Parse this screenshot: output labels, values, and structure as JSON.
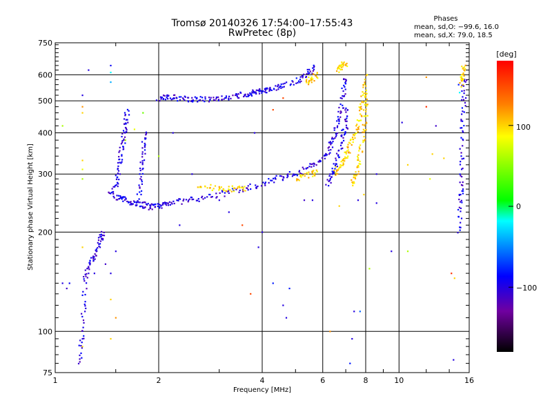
{
  "header": {
    "title": "Tromsø 20140326 17:54:00–17:55:43",
    "subtitle": "RwPretec (8p)"
  },
  "phase_info": {
    "heading": "Phases",
    "line_o": "mean, sd,O: −99.6, 16.0",
    "line_x": "mean, sd,X:  79.0, 18.5"
  },
  "chart_data": {
    "type": "scatter",
    "title": "Tromsø 20140326 17:54:00–17:55:43",
    "subtitle": "RwPretec (8p)",
    "xlabel": "Frequency [MHz]",
    "ylabel": "Stationary phase Virtual Height [km]",
    "xscale": "log",
    "yscale": "log",
    "xlim": [
      1,
      16
    ],
    "ylim": [
      75,
      750
    ],
    "grid": true,
    "x_ticks": [
      1,
      2,
      4,
      6,
      8,
      10,
      16
    ],
    "y_ticks": [
      75,
      100,
      200,
      300,
      400,
      500,
      600,
      750
    ],
    "colorbar": {
      "label": "[deg]",
      "range": [
        -180,
        180
      ],
      "ticks": [
        -100,
        0,
        100
      ],
      "colors": [
        "#000000",
        "#7000a0",
        "#0000ff",
        "#00ffff",
        "#00ff00",
        "#ffff00",
        "#ff8000",
        "#ff0000"
      ]
    },
    "series": [
      {
        "traces": [
          {
            "points": [
              [
                1.5,
                270
              ],
              [
                1.52,
                300
              ],
              [
                1.55,
                340
              ],
              [
                1.58,
                380
              ],
              [
                1.6,
                420
              ],
              [
                1.62,
                470
              ]
            ],
            "phase": -100
          },
          {
            "points": [
              [
                1.45,
                268
              ],
              [
                1.52,
                255
              ],
              [
                1.6,
                250
              ],
              [
                1.7,
                245
              ],
              [
                1.8,
                242
              ],
              [
                1.9,
                238
              ],
              [
                2.0,
                240
              ],
              [
                2.1,
                245
              ],
              [
                2.3,
                248
              ],
              [
                2.6,
                252
              ],
              [
                3.0,
                260
              ],
              [
                3.5,
                270
              ],
              [
                4.0,
                280
              ],
              [
                4.5,
                292
              ],
              [
                5.0,
                302
              ],
              [
                5.5,
                315
              ],
              [
                6.0,
                335
              ],
              [
                6.3,
                360
              ],
              [
                6.5,
                400
              ],
              [
                6.7,
                450
              ],
              [
                6.9,
                520
              ],
              [
                7.0,
                600
              ]
            ],
            "phase": -100
          },
          {
            "points": [
              [
                1.75,
                250
              ],
              [
                1.78,
                300
              ],
              [
                1.8,
                350
              ],
              [
                1.83,
                400
              ]
            ],
            "phase": -100
          },
          {
            "points": [
              [
                2.0,
                510
              ],
              [
                2.1,
                515
              ],
              [
                2.3,
                510
              ],
              [
                2.5,
                505
              ],
              [
                2.7,
                505
              ],
              [
                3.0,
                510
              ],
              [
                3.3,
                515
              ],
              [
                3.6,
                525
              ],
              [
                3.8,
                530
              ],
              [
                4.0,
                535
              ],
              [
                4.2,
                540
              ],
              [
                4.5,
                555
              ],
              [
                5.0,
                575
              ],
              [
                5.4,
                600
              ],
              [
                5.7,
                640
              ]
            ],
            "phase": -100
          },
          {
            "points": [
              [
                1.18,
                80
              ],
              [
                1.2,
                100
              ],
              [
                1.22,
                140
              ],
              [
                1.25,
                160
              ],
              [
                1.3,
                170
              ],
              [
                1.35,
                190
              ],
              [
                1.38,
                200
              ]
            ],
            "phase": -100
          },
          {
            "points": [
              [
                15.0,
                200
              ],
              [
                15.1,
                250
              ],
              [
                15.2,
                300
              ],
              [
                15.3,
                400
              ],
              [
                15.4,
                500
              ],
              [
                15.5,
                600
              ]
            ],
            "phase": -100
          },
          {
            "points": [
              [
                6.2,
                280
              ],
              [
                6.4,
                300
              ],
              [
                6.6,
                330
              ],
              [
                6.8,
                380
              ],
              [
                7.0,
                420
              ],
              [
                7.1,
                480
              ]
            ],
            "phase": -100
          }
        ],
        "name": ""
      },
      {
        "traces": [
          {
            "points": [
              [
                2.6,
                275
              ],
              [
                3.0,
                272
              ],
              [
                3.3,
                270
              ],
              [
                3.6,
                272
              ]
            ],
            "phase": 100
          },
          {
            "points": [
              [
                5.0,
                290
              ],
              [
                5.5,
                300
              ],
              [
                5.8,
                305
              ]
            ],
            "phase": 100
          },
          {
            "points": [
              [
                6.5,
                300
              ],
              [
                6.8,
                320
              ],
              [
                7.0,
                340
              ],
              [
                7.2,
                370
              ],
              [
                7.5,
                400
              ],
              [
                7.7,
                450
              ],
              [
                7.9,
                520
              ],
              [
                8.0,
                600
              ]
            ],
            "phase": 100
          },
          {
            "points": [
              [
                7.3,
                280
              ],
              [
                7.5,
                300
              ],
              [
                7.7,
                340
              ],
              [
                7.9,
                400
              ],
              [
                8.0,
                470
              ],
              [
                8.05,
                530
              ]
            ],
            "phase": 100
          },
          {
            "points": [
              [
                5.4,
                570
              ],
              [
                5.6,
                585
              ],
              [
                5.75,
                600
              ]
            ],
            "phase": 100
          },
          {
            "points": [
              [
                6.6,
                620
              ],
              [
                6.8,
                640
              ],
              [
                7.0,
                650
              ]
            ],
            "phase": 100
          },
          {
            "points": [
              [
                15.2,
                560
              ],
              [
                15.3,
                600
              ],
              [
                15.5,
                640
              ]
            ],
            "phase": 100
          }
        ],
        "name": ""
      }
    ],
    "scatter_points": [
      [
        1.05,
        140,
        -100
      ],
      [
        1.08,
        135,
        -110
      ],
      [
        1.1,
        140,
        -90
      ],
      [
        1.2,
        95,
        -100
      ],
      [
        1.22,
        115,
        -100
      ],
      [
        1.25,
        150,
        -100
      ],
      [
        1.3,
        150,
        -100
      ],
      [
        1.35,
        180,
        -100
      ],
      [
        1.4,
        160,
        -110
      ],
      [
        1.45,
        150,
        -100
      ],
      [
        1.5,
        175,
        -100
      ],
      [
        1.45,
        640,
        -90
      ],
      [
        1.45,
        610,
        -20
      ],
      [
        1.45,
        570,
        -40
      ],
      [
        1.2,
        330,
        100
      ],
      [
        1.2,
        310,
        80
      ],
      [
        1.2,
        290,
        60
      ],
      [
        1.2,
        460,
        100
      ],
      [
        1.2,
        480,
        120
      ],
      [
        1.2,
        520,
        -100
      ],
      [
        1.25,
        620,
        -100
      ],
      [
        1.05,
        420,
        60
      ],
      [
        1.2,
        180,
        100
      ],
      [
        1.2,
        90,
        100
      ],
      [
        1.45,
        125,
        100
      ],
      [
        1.5,
        110,
        120
      ],
      [
        1.45,
        95,
        100
      ],
      [
        1.6,
        380,
        60
      ],
      [
        1.7,
        410,
        80
      ],
      [
        1.8,
        460,
        40
      ],
      [
        2.0,
        340,
        60
      ],
      [
        2.2,
        400,
        -100
      ],
      [
        2.3,
        210,
        -100
      ],
      [
        2.5,
        300,
        -100
      ],
      [
        3.0,
        250,
        -100
      ],
      [
        3.2,
        230,
        -100
      ],
      [
        3.5,
        210,
        150
      ],
      [
        3.9,
        180,
        -100
      ],
      [
        4.0,
        200,
        -100
      ],
      [
        3.7,
        130,
        150
      ],
      [
        4.3,
        140,
        -80
      ],
      [
        4.6,
        120,
        -100
      ],
      [
        4.8,
        135,
        -80
      ],
      [
        4.7,
        110,
        -100
      ],
      [
        5.3,
        250,
        -110
      ],
      [
        5.6,
        250,
        -100
      ],
      [
        6.3,
        100,
        120
      ],
      [
        6.7,
        240,
        100
      ],
      [
        7.4,
        115,
        -100
      ],
      [
        7.3,
        95,
        -100
      ],
      [
        7.2,
        80,
        -80
      ],
      [
        7.7,
        115,
        -60
      ],
      [
        8.6,
        300,
        -100
      ],
      [
        8.6,
        245,
        -100
      ],
      [
        8.2,
        155,
        60
      ],
      [
        9.5,
        175,
        -100
      ],
      [
        10.2,
        430,
        -100
      ],
      [
        10.6,
        320,
        100
      ],
      [
        10.6,
        175,
        60
      ],
      [
        12.0,
        590,
        120
      ],
      [
        12.0,
        480,
        160
      ],
      [
        12.5,
        345,
        100
      ],
      [
        12.3,
        290,
        80
      ],
      [
        12.8,
        420,
        -110
      ],
      [
        13.5,
        335,
        100
      ],
      [
        14.2,
        150,
        160
      ],
      [
        14.5,
        145,
        100
      ],
      [
        14.4,
        82,
        -100
      ],
      [
        4.3,
        470,
        150
      ],
      [
        4.6,
        510,
        150
      ],
      [
        3.8,
        400,
        -100
      ],
      [
        7.9,
        260,
        100
      ],
      [
        7.6,
        250,
        -100
      ],
      [
        14.9,
        560,
        -80
      ],
      [
        15.0,
        530,
        -20
      ],
      [
        15.1,
        260,
        -100
      ]
    ]
  },
  "colorbar_labels": {
    "label": "[deg]",
    "t100": "100",
    "t0": "0",
    "tm100": "−100"
  },
  "axes": {
    "xlabel": "Frequency [MHz]",
    "ylabel": "Stationary phase Virtual Height [km]",
    "x_tick_labels": [
      "1",
      "2",
      "4",
      "6",
      "8",
      "10",
      "16"
    ],
    "y_tick_labels": [
      "75",
      "100",
      "200",
      "300",
      "400",
      "500",
      "600",
      "750"
    ]
  }
}
